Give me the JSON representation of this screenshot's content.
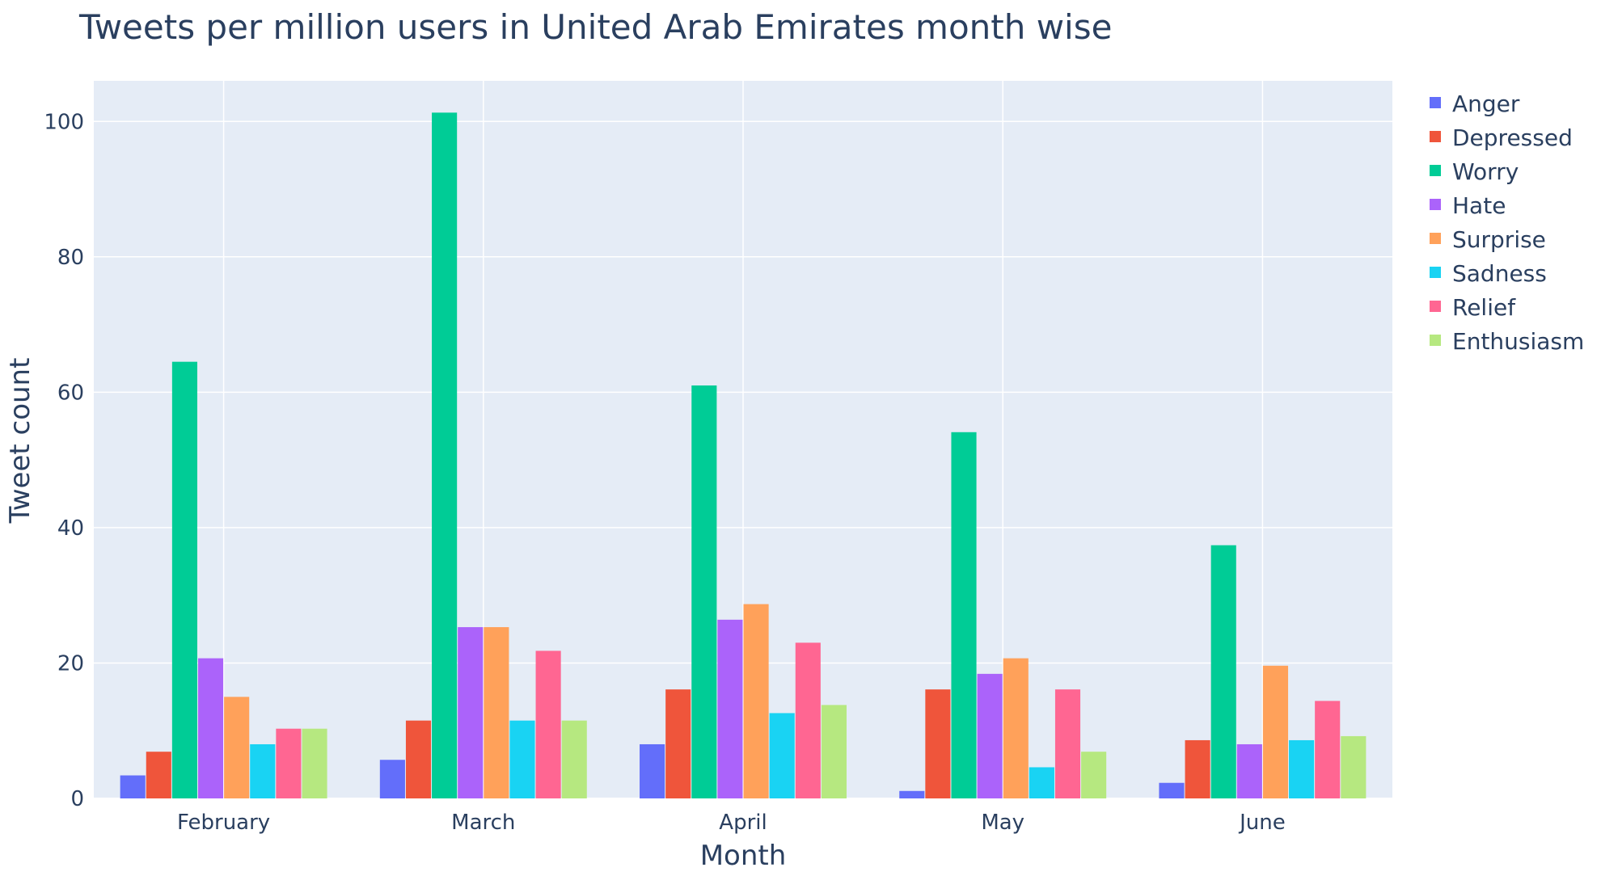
{
  "chart_data": {
    "type": "bar",
    "title": "Tweets per million users in United Arab Emirates month wise",
    "xlabel": "Month",
    "ylabel": "Tweet count",
    "categories": [
      "February",
      "March",
      "April",
      "May",
      "June"
    ],
    "ylim": [
      0,
      106
    ],
    "yticks": [
      0,
      20,
      40,
      60,
      80,
      100
    ],
    "grid": true,
    "legend_position": "right",
    "plot_background": "#E5ECF6",
    "gridline_color": "#ffffff",
    "series": [
      {
        "name": "Anger",
        "color": "#636EFA",
        "values": [
          3.4,
          5.7,
          8.0,
          1.1,
          2.3
        ]
      },
      {
        "name": "Depressed",
        "color": "#EF553B",
        "values": [
          6.9,
          11.5,
          16.1,
          16.1,
          8.6
        ]
      },
      {
        "name": "Worry",
        "color": "#00CC96",
        "values": [
          64.5,
          101.3,
          61.0,
          54.1,
          37.4
        ]
      },
      {
        "name": "Hate",
        "color": "#AB63FA",
        "values": [
          20.7,
          25.3,
          26.4,
          18.4,
          8.0
        ]
      },
      {
        "name": "Surprise",
        "color": "#FFA15A",
        "values": [
          15.0,
          25.3,
          28.7,
          20.7,
          19.6
        ]
      },
      {
        "name": "Sadness",
        "color": "#19D3F3",
        "values": [
          8.0,
          11.5,
          12.6,
          4.6,
          8.6
        ]
      },
      {
        "name": "Relief",
        "color": "#FF6692",
        "values": [
          10.3,
          21.8,
          23.0,
          16.1,
          14.4
        ]
      },
      {
        "name": "Enthusiasm",
        "color": "#B6E880",
        "values": [
          10.3,
          11.5,
          13.8,
          6.9,
          9.2
        ]
      }
    ]
  }
}
